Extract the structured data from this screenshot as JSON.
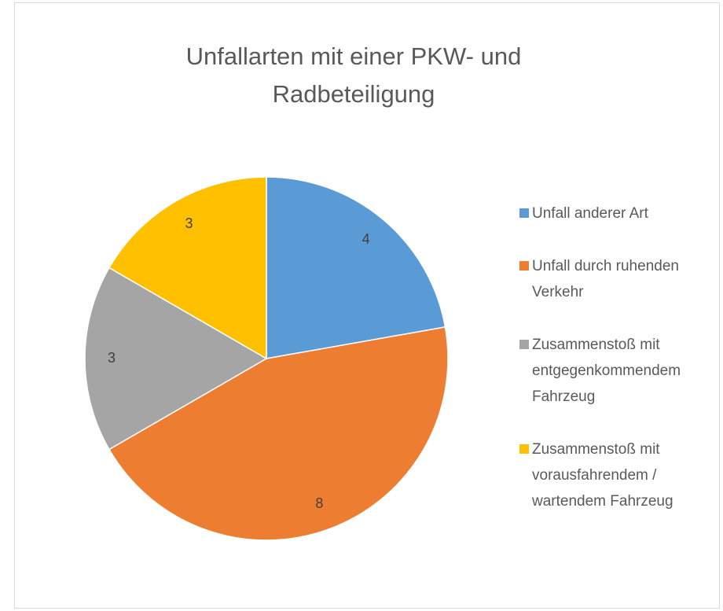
{
  "chart_data": {
    "type": "pie",
    "title": "Unfallarten mit einer PKW- und Radbeteiligung",
    "categories": [
      "Unfall anderer Art",
      "Unfall durch ruhenden Verkehr",
      "Zusammenstoß mit entgegenkommendem Fahrzeug",
      "Zusammenstoß mit vorausfahrendem / wartendem Fahrzeug"
    ],
    "values": [
      4,
      8,
      3,
      3
    ],
    "colors": [
      "#5b9bd5",
      "#ed7d31",
      "#a5a5a5",
      "#ffc000"
    ],
    "legend": "right"
  }
}
